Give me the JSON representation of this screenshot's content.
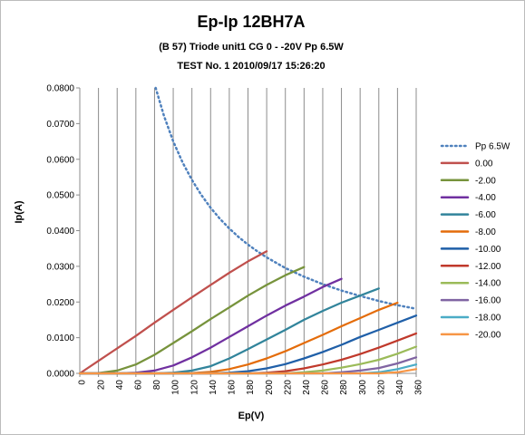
{
  "chart_data": {
    "type": "line",
    "title": "Ep-Ip 12BH7A",
    "subtitle_1": "(B 57) Triode unit1 CG 0 - -20V Pp 6.5W",
    "subtitle_2": "TEST No. 1 2010/09/17 15:26:20",
    "xlabel": "Ep(V)",
    "ylabel": "Ip(A)",
    "xlim": [
      0,
      360
    ],
    "ylim": [
      0,
      0.08
    ],
    "x_ticks": [
      "0",
      "20",
      "40",
      "60",
      "80",
      "100",
      "120",
      "140",
      "160",
      "180",
      "200",
      "220",
      "240",
      "260",
      "280",
      "300",
      "320",
      "340",
      "360"
    ],
    "y_ticks": [
      "0.0000",
      "0.0100",
      "0.0200",
      "0.0300",
      "0.0400",
      "0.0500",
      "0.0600",
      "0.0700",
      "0.0800"
    ],
    "grid": "vertical",
    "legend_position": "right",
    "series": [
      {
        "name": "Pp  6.5W",
        "color": "#4f81bd",
        "dashed": true,
        "points": [
          [
            81.25,
            0.08
          ],
          [
            90,
            0.0722
          ],
          [
            100,
            0.065
          ],
          [
            110,
            0.0591
          ],
          [
            120,
            0.0542
          ],
          [
            130,
            0.05
          ],
          [
            140,
            0.0464
          ],
          [
            150,
            0.0433
          ],
          [
            160,
            0.0406
          ],
          [
            170,
            0.0382
          ],
          [
            180,
            0.0361
          ],
          [
            190,
            0.0342
          ],
          [
            200,
            0.0325
          ],
          [
            220,
            0.0295
          ],
          [
            240,
            0.0271
          ],
          [
            260,
            0.025
          ],
          [
            280,
            0.0232
          ],
          [
            300,
            0.0217
          ],
          [
            320,
            0.0203
          ],
          [
            340,
            0.0191
          ],
          [
            360,
            0.0181
          ]
        ]
      },
      {
        "name": "0.00",
        "color": "#c0504d",
        "points": [
          [
            0,
            0
          ],
          [
            20,
            0.0035
          ],
          [
            40,
            0.007
          ],
          [
            60,
            0.0105
          ],
          [
            80,
            0.0142
          ],
          [
            100,
            0.0178
          ],
          [
            120,
            0.0213
          ],
          [
            140,
            0.0248
          ],
          [
            160,
            0.0282
          ],
          [
            180,
            0.0314
          ],
          [
            200,
            0.0342
          ]
        ]
      },
      {
        "name": "-2.00",
        "color": "#77933c",
        "points": [
          [
            0,
            0
          ],
          [
            20,
            0.0001
          ],
          [
            40,
            0.0008
          ],
          [
            60,
            0.0025
          ],
          [
            80,
            0.0052
          ],
          [
            100,
            0.0085
          ],
          [
            120,
            0.0118
          ],
          [
            140,
            0.0152
          ],
          [
            160,
            0.0185
          ],
          [
            180,
            0.0218
          ],
          [
            200,
            0.0248
          ],
          [
            220,
            0.0275
          ],
          [
            240,
            0.0298
          ]
        ]
      },
      {
        "name": "-4.00",
        "color": "#7030a0",
        "points": [
          [
            0,
            0
          ],
          [
            40,
            0
          ],
          [
            60,
            0.0002
          ],
          [
            80,
            0.0008
          ],
          [
            100,
            0.0022
          ],
          [
            120,
            0.0045
          ],
          [
            140,
            0.0072
          ],
          [
            160,
            0.0102
          ],
          [
            180,
            0.0132
          ],
          [
            200,
            0.0162
          ],
          [
            220,
            0.019
          ],
          [
            240,
            0.0215
          ],
          [
            260,
            0.0242
          ],
          [
            280,
            0.0265
          ]
        ]
      },
      {
        "name": "-6.00",
        "color": "#31849b",
        "points": [
          [
            0,
            0
          ],
          [
            80,
            0
          ],
          [
            100,
            0.0002
          ],
          [
            120,
            0.0008
          ],
          [
            140,
            0.002
          ],
          [
            160,
            0.0042
          ],
          [
            180,
            0.0068
          ],
          [
            200,
            0.0095
          ],
          [
            220,
            0.0122
          ],
          [
            240,
            0.015
          ],
          [
            260,
            0.0175
          ],
          [
            280,
            0.0198
          ],
          [
            300,
            0.0218
          ],
          [
            320,
            0.0238
          ]
        ]
      },
      {
        "name": "-8.00",
        "color": "#e46c0a",
        "points": [
          [
            0,
            0
          ],
          [
            100,
            0
          ],
          [
            120,
            0.0001
          ],
          [
            140,
            0.0004
          ],
          [
            160,
            0.0012
          ],
          [
            180,
            0.0025
          ],
          [
            200,
            0.0042
          ],
          [
            220,
            0.0062
          ],
          [
            240,
            0.0085
          ],
          [
            260,
            0.0108
          ],
          [
            280,
            0.0132
          ],
          [
            300,
            0.0155
          ],
          [
            320,
            0.0178
          ],
          [
            340,
            0.0198
          ]
        ]
      },
      {
        "name": "-10.00",
        "color": "#1f5fa8",
        "points": [
          [
            0,
            0
          ],
          [
            140,
            0
          ],
          [
            160,
            0.0002
          ],
          [
            180,
            0.0006
          ],
          [
            200,
            0.0014
          ],
          [
            220,
            0.0026
          ],
          [
            240,
            0.0042
          ],
          [
            260,
            0.006
          ],
          [
            280,
            0.008
          ],
          [
            300,
            0.0102
          ],
          [
            320,
            0.0122
          ],
          [
            340,
            0.0142
          ],
          [
            360,
            0.0162
          ]
        ]
      },
      {
        "name": "-12.00",
        "color": "#c0392b",
        "points": [
          [
            0,
            0
          ],
          [
            180,
            0
          ],
          [
            200,
            0.0002
          ],
          [
            220,
            0.0006
          ],
          [
            240,
            0.0014
          ],
          [
            260,
            0.0025
          ],
          [
            280,
            0.0038
          ],
          [
            300,
            0.0054
          ],
          [
            320,
            0.0072
          ],
          [
            340,
            0.0092
          ],
          [
            360,
            0.0112
          ]
        ]
      },
      {
        "name": "-14.00",
        "color": "#9bbb59",
        "points": [
          [
            0,
            0
          ],
          [
            220,
            0
          ],
          [
            240,
            0.0003
          ],
          [
            260,
            0.0008
          ],
          [
            280,
            0.0016
          ],
          [
            300,
            0.0026
          ],
          [
            320,
            0.0038
          ],
          [
            340,
            0.0055
          ],
          [
            360,
            0.0075
          ]
        ]
      },
      {
        "name": "-16.00",
        "color": "#8064a2",
        "points": [
          [
            0,
            0
          ],
          [
            260,
            0
          ],
          [
            280,
            0.0003
          ],
          [
            300,
            0.0008
          ],
          [
            320,
            0.0015
          ],
          [
            340,
            0.0028
          ],
          [
            360,
            0.0045
          ]
        ]
      },
      {
        "name": "-18.00",
        "color": "#4bacc6",
        "points": [
          [
            0,
            0
          ],
          [
            300,
            0
          ],
          [
            320,
            0.0003
          ],
          [
            340,
            0.0012
          ],
          [
            360,
            0.0025
          ]
        ]
      },
      {
        "name": "-20.00",
        "color": "#f79646",
        "points": [
          [
            0,
            0
          ],
          [
            320,
            0
          ],
          [
            340,
            0.0003
          ],
          [
            360,
            0.0012
          ]
        ]
      }
    ]
  }
}
